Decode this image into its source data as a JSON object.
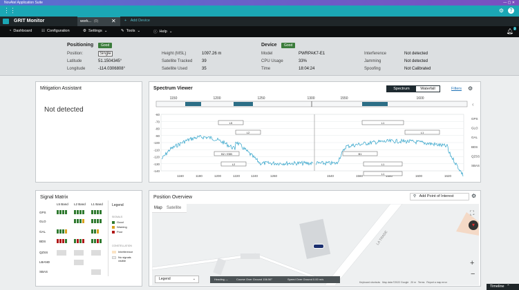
{
  "os_title": "NovAtel Application Suite",
  "app": {
    "name": "GRIT Monitor",
    "tab_label": "work...",
    "tab_count": "(0)",
    "add_device": "Add Device"
  },
  "menu": {
    "dashboard": "Dashboard",
    "configuration": "Configuration",
    "settings": "Settings",
    "tools": "Tools",
    "help": "Help",
    "notif_count": "2"
  },
  "positioning": {
    "title": "Positioning",
    "status": "Good",
    "position_label": "Position:",
    "position": "Single",
    "lat_label": "Latitude",
    "lat": "51.1504345°",
    "lon_label": "Longitude",
    "lon": "-114.0306808°",
    "height_label": "Height (MSL)",
    "height": "1097.26 m",
    "tracked_label": "Satellite Tracked",
    "tracked": "39",
    "used_label": "Satellite Used",
    "used": "35"
  },
  "device": {
    "title": "Device",
    "status": "Good",
    "model_label": "Model",
    "model": "PWRPAK7-E1",
    "cpu_label": "CPU Usage",
    "cpu": "33%",
    "time_label": "Time",
    "time": "18:04:24",
    "interference_label": "Interference",
    "interference": "Not detected",
    "jamming_label": "Jamming",
    "jamming": "Not detected",
    "spoofing_label": "Spoofing",
    "spoofing": "Not Calibrated"
  },
  "mitigation": {
    "title": "Mitigation Assistant",
    "status": "Not detected"
  },
  "spectrum": {
    "title": "Spectrum Viewer",
    "tab_spectrum": "Spectrum",
    "tab_waterfall": "Waterfall",
    "filters": "Filters",
    "overview_ticks": [
      "1150",
      "1200",
      "1250",
      "1300",
      "1550",
      "1600"
    ],
    "y_ticks": [
      "-60",
      "-70",
      "-80",
      "-90",
      "-100",
      "-110",
      "-120",
      "-130",
      "-140"
    ],
    "x_ticks_left": [
      "1160",
      "1180",
      "1200",
      "1220",
      "1240",
      "1260"
    ],
    "x_ticks_right": [
      "1540",
      "1560",
      "1580",
      "1600",
      "1620"
    ],
    "constellations": [
      "GPS",
      "GLO",
      "GAL",
      "BDS",
      "QZSS",
      "SBAS"
    ],
    "band_labels_left": [
      "L5",
      "L2",
      "B2 / E5B",
      "L2"
    ],
    "band_labels_right": [
      "L1",
      "L1",
      "B1",
      "L1",
      "L1"
    ],
    "colors": {
      "trace": "#2aa0c8",
      "band_box": "#2c6e86"
    }
  },
  "signal_matrix": {
    "title": "Signal Matrix",
    "bands": [
      "L5 Band",
      "L2 Band",
      "L1 Band"
    ],
    "rows": [
      "GPS",
      "GLO",
      "GAL",
      "BDS",
      "QZSS",
      "LBAND",
      "SBAS"
    ],
    "legend_title": "Legend",
    "signals_title": "SIGNALS",
    "legend_items": [
      "Good",
      "Warning",
      "Poor"
    ],
    "constellation_title": "CONSTELLATION",
    "constellation_items": [
      "Interference",
      "No signals visible"
    ],
    "colors": {
      "good": "#2f7a2f",
      "warning": "#d8a020",
      "poor": "#b01818",
      "empty": "#dcdcdc"
    }
  },
  "position_overview": {
    "title": "Position Overview",
    "add_poi": "Add Point of Interest",
    "map_tab": "Map",
    "satellite_tab": "Satellite",
    "legend_select": "Legend",
    "heading": "Heading —",
    "cog": "Course Over Ground 156.56°",
    "sog": "Speed Over Ground 0.00 m/s",
    "attribution": [
      "Keyboard shortcuts",
      "Map data ©2022 Google",
      "20 m",
      "Terms",
      "Report a map error"
    ],
    "street": "LA TRADE"
  },
  "timeline": "Timeline"
}
